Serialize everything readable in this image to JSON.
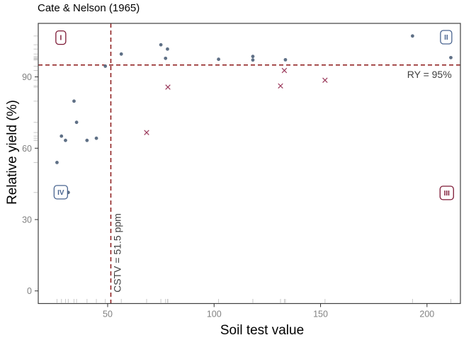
{
  "chart_data": {
    "type": "scatter",
    "title": "Cate & Nelson (1965)",
    "xlabel": "Soil test value",
    "ylabel": "Relative yield (%)",
    "xlim": [
      17.4,
      215.7
    ],
    "ylim": [
      -5.3,
      112.5
    ],
    "x_ticks": [
      50,
      100,
      150,
      200
    ],
    "y_ticks": [
      0,
      30,
      60,
      90
    ],
    "grid": false,
    "legend": "none",
    "panel_border_color": "#3f3f3f",
    "tick_label_color": "#828282",
    "annotation_color": "#3f3f3f",
    "series": [
      {
        "name": "points-circle",
        "marker": "circle",
        "color": "#5f7086",
        "points": [
          [
            26.2,
            54.0
          ],
          [
            28.3,
            65.1
          ],
          [
            30.2,
            63.3
          ],
          [
            31.5,
            41.4
          ],
          [
            34.2,
            79.8
          ],
          [
            35.4,
            70.9
          ],
          [
            40.3,
            63.3
          ],
          [
            44.7,
            64.2
          ],
          [
            48.9,
            94.5
          ],
          [
            56.4,
            99.6
          ],
          [
            75.0,
            103.5
          ],
          [
            77.2,
            97.8
          ],
          [
            78.1,
            101.7
          ],
          [
            102.1,
            97.4
          ],
          [
            118.2,
            98.6
          ],
          [
            118.2,
            97.1
          ],
          [
            133.5,
            97.2
          ],
          [
            193.2,
            107.2
          ],
          [
            211.2,
            98.1
          ]
        ]
      },
      {
        "name": "points-cross",
        "marker": "x",
        "color": "#9a385a",
        "points": [
          [
            68.3,
            66.6
          ],
          [
            78.3,
            85.7
          ],
          [
            131.2,
            86.2
          ],
          [
            133.0,
            92.7
          ],
          [
            152.1,
            88.6
          ]
        ]
      }
    ],
    "reference_lines": {
      "vertical": {
        "value": 51.5,
        "label": "CSTV = 51.5 ppm",
        "color": "#8b1717",
        "style": "dashed"
      },
      "horizontal": {
        "value": 95,
        "label": "RY = 95%",
        "color": "#8b1717",
        "style": "dashed"
      }
    },
    "annotations": [
      {
        "text": "RY = 95%",
        "x": 211.6,
        "y": 89.5,
        "anchor": "end",
        "rotate": 0
      },
      {
        "text": "CSTV = 51.5 ppm",
        "x": 56.2,
        "y": 16.0,
        "anchor": "middle",
        "rotate": -90
      }
    ],
    "quadrant_labels": [
      {
        "text": "I",
        "x": 28.0,
        "y": 106.5,
        "color": "#7d1935"
      },
      {
        "text": "II",
        "x": 209.0,
        "y": 106.7,
        "color": "#4a6590"
      },
      {
        "text": "III",
        "x": 209.3,
        "y": 41.2,
        "color": "#7d1935"
      },
      {
        "text": "IV",
        "x": 28.0,
        "y": 41.5,
        "color": "#4a6590"
      }
    ],
    "rug": {
      "sides": "bottom-left",
      "color": "#c8c8c8"
    }
  }
}
